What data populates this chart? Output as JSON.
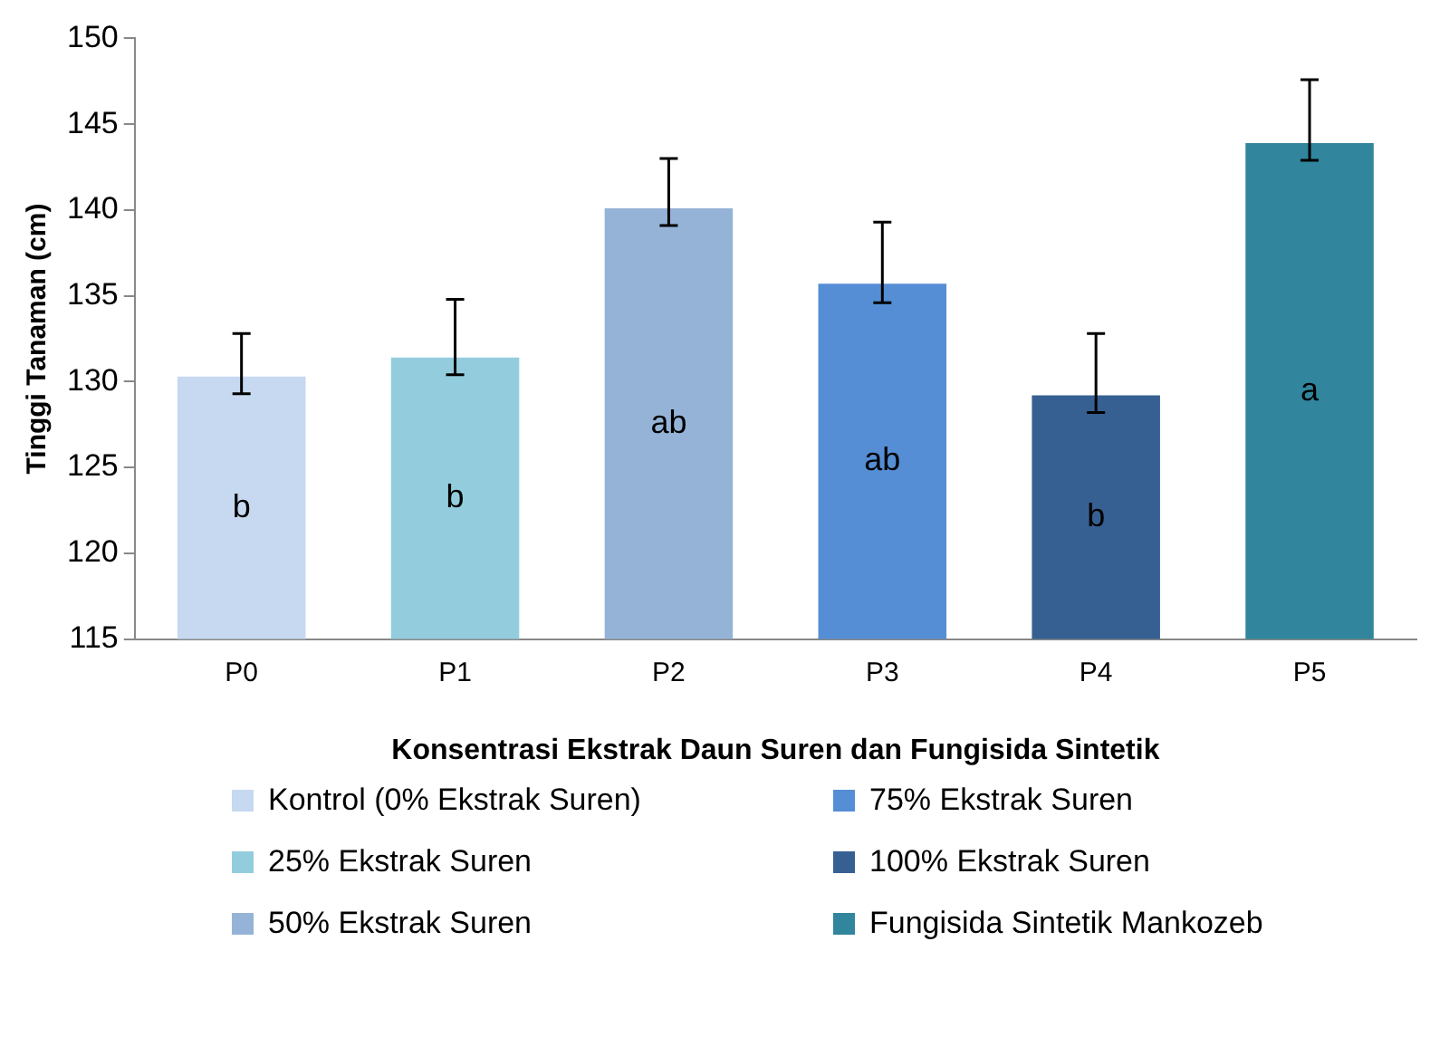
{
  "chart_data": {
    "type": "bar",
    "xlabel": "Konsentrasi Ekstrak Daun Suren dan Fungisida Sintetik",
    "ylabel": "Tinggi Tanaman (cm)",
    "categories": [
      "P0",
      "P1",
      "P2",
      "P3",
      "P4",
      "P5"
    ],
    "series": [
      {
        "name": "Kontrol (0% Ekstrak Suren)",
        "color": "#c6d9f1",
        "values": [
          130.3,
          null,
          null,
          null,
          null,
          null
        ],
        "errors": [
          [
            129.3,
            132.8
          ],
          null,
          null,
          null,
          null,
          null
        ]
      },
      {
        "name": "25% Ekstrak Suren",
        "color": "#93cddd",
        "values": [
          null,
          131.4,
          null,
          null,
          null,
          null
        ],
        "errors": [
          null,
          [
            130.4,
            134.8
          ],
          null,
          null,
          null,
          null
        ]
      },
      {
        "name": "50% Ekstrak Suren",
        "color": "#95b3d7",
        "values": [
          null,
          null,
          140.1,
          null,
          null,
          null
        ],
        "errors": [
          null,
          null,
          [
            139.1,
            143.0
          ],
          null,
          null,
          null
        ]
      },
      {
        "name": "75% Ekstrak Suren",
        "color": "#558ed5",
        "values": [
          null,
          null,
          null,
          135.7,
          null,
          null
        ],
        "errors": [
          null,
          null,
          null,
          [
            134.6,
            139.3
          ],
          null,
          null
        ]
      },
      {
        "name": "100% Ekstrak Suren",
        "color": "#376092",
        "values": [
          null,
          null,
          null,
          null,
          129.2,
          null
        ],
        "errors": [
          null,
          null,
          null,
          null,
          [
            128.2,
            132.8
          ],
          null
        ]
      },
      {
        "name": "Fungisida Sintetik Mankozeb",
        "color": "#31859c",
        "values": [
          null,
          null,
          null,
          null,
          null,
          143.9
        ],
        "errors": [
          null,
          null,
          null,
          null,
          null,
          [
            142.9,
            147.6
          ]
        ]
      }
    ],
    "annotations": [
      "b",
      "b",
      "ab",
      "ab",
      "b",
      "a"
    ],
    "ylim": [
      115,
      150
    ],
    "yticks": [
      115,
      120,
      125,
      130,
      135,
      140,
      145,
      150
    ],
    "grid": false,
    "legend": "bottom"
  }
}
